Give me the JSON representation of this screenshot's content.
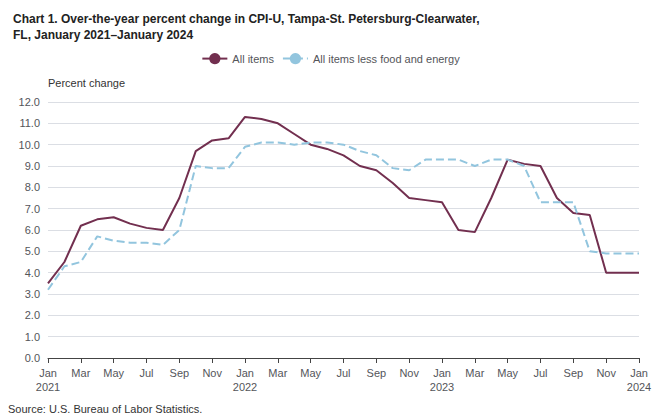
{
  "chart_data": {
    "type": "line",
    "title": "Chart 1. Over-the-year percent change in CPI-U, Tampa-St. Petersburg-Clearwater,\nFL, January 2021–January 2024",
    "ylabel": "Percent change",
    "source": "Source: U.S. Bureau of Labor Statistics.",
    "categories": [
      "Jan\n2021",
      null,
      "Mar",
      null,
      "May",
      null,
      "Jul",
      null,
      "Sep",
      null,
      "Nov",
      null,
      "Jan\n2022",
      null,
      "Mar",
      null,
      "May",
      null,
      "Jul",
      null,
      "Sep",
      null,
      "Nov",
      null,
      "Jan\n2023",
      null,
      "Mar",
      null,
      "May",
      null,
      "Jul",
      null,
      "Sep",
      null,
      "Nov",
      null,
      "Jan\n2024"
    ],
    "series": [
      {
        "name": "All items",
        "color": "#722F4F",
        "line_style": "solid",
        "values": [
          3.5,
          4.5,
          6.2,
          6.5,
          6.6,
          6.3,
          6.1,
          6.0,
          7.5,
          9.7,
          10.2,
          10.3,
          11.3,
          11.2,
          11.0,
          10.5,
          10.0,
          9.8,
          9.5,
          9.0,
          8.8,
          8.2,
          7.5,
          7.4,
          7.3,
          6.0,
          5.9,
          7.5,
          9.3,
          9.1,
          9.0,
          7.5,
          6.8,
          6.7,
          4.0,
          4.0,
          4.0
        ]
      },
      {
        "name": "All items less food and energy",
        "color": "#92C5DE",
        "line_style": "dashed",
        "values": [
          3.2,
          4.3,
          4.5,
          5.7,
          5.5,
          5.4,
          5.4,
          5.3,
          6.0,
          9.0,
          8.9,
          8.9,
          9.9,
          10.1,
          10.1,
          10.0,
          10.1,
          10.1,
          10.0,
          9.7,
          9.5,
          8.9,
          8.8,
          9.3,
          9.3,
          9.3,
          9.0,
          9.3,
          9.3,
          9.0,
          7.3,
          7.3,
          7.3,
          5.0,
          4.9,
          4.9,
          4.9
        ]
      }
    ],
    "ylim": [
      0.0,
      12.0
    ],
    "yticks": [
      {
        "value": 0,
        "label": "0.0"
      },
      {
        "value": 1,
        "label": "1.0"
      },
      {
        "value": 2,
        "label": "2.0"
      },
      {
        "value": 3,
        "label": "3.0"
      },
      {
        "value": 4,
        "label": "4.0"
      },
      {
        "value": 5,
        "label": "5.0"
      },
      {
        "value": 6,
        "label": "6.0"
      },
      {
        "value": 7,
        "label": "7.0"
      },
      {
        "value": 8,
        "label": "8.0"
      },
      {
        "value": 9,
        "label": "9.0"
      },
      {
        "value": 10,
        "label": "10.0"
      },
      {
        "value": 11,
        "label": "11.0"
      },
      {
        "value": 12,
        "label": "12.0"
      }
    ],
    "grid": true,
    "legend": "top"
  }
}
